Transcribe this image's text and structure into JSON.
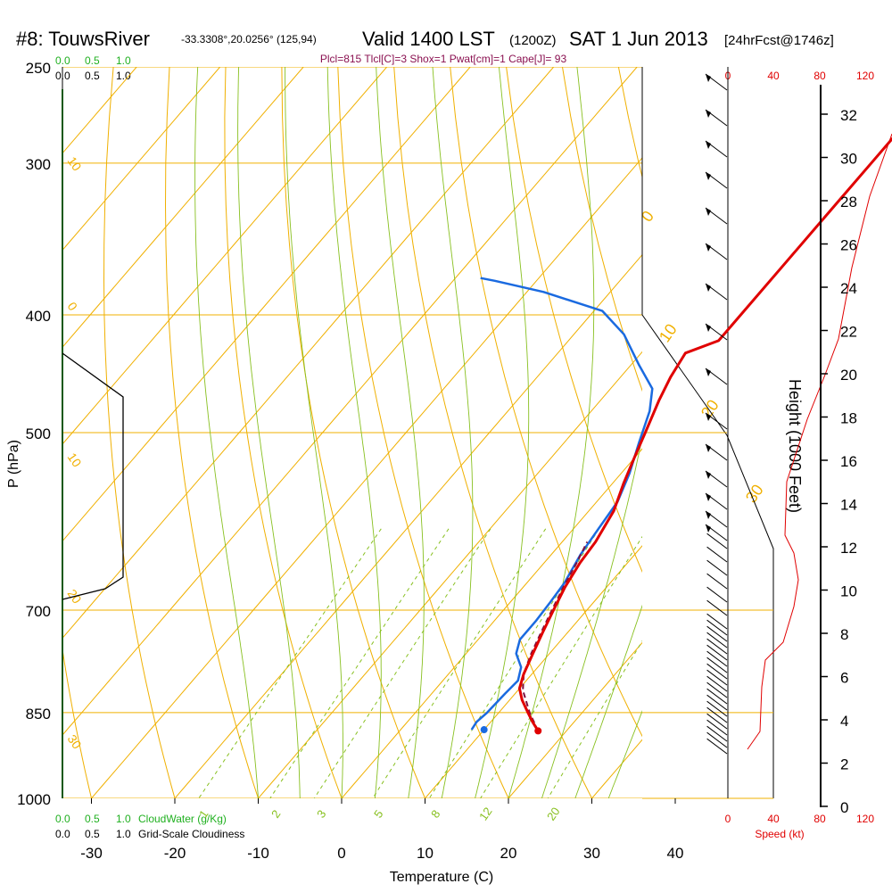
{
  "header": {
    "station": "#8: TouwsRiver",
    "coords": "-33.3308°,20.0256° (125,94)",
    "valid": "Valid 1400 LST",
    "zulu": "(1200Z)",
    "date": "SAT 1 Jun 2013",
    "forecast": "[24hrFcst@1746z]"
  },
  "indices": "Plcl=815 Tlcl[C]=3 Shox=1 Pwat[cm]=1 Cape[J]= 93",
  "colors": {
    "temperature": "#e00000",
    "dewpoint": "#1a6ae0",
    "parcel": "#7a1040",
    "isotherm_isobar": "#f0b000",
    "moist_adiabat": "#88c020",
    "mixing_ratio": "#88c020",
    "cloudwater": "#20b020",
    "speed": "#e00000"
  },
  "chart_data": {
    "type": "line",
    "xlabel": "Temperature (C)",
    "ylabel": "P (hPa)",
    "y2label": "Height (1000 Feet)",
    "xticks": [
      -30,
      -20,
      -10,
      0,
      10,
      20,
      30,
      40
    ],
    "pressure_ticks": [
      250,
      300,
      400,
      500,
      700,
      850,
      1000
    ],
    "height_ticks": [
      0,
      2,
      4,
      6,
      8,
      10,
      12,
      14,
      16,
      18,
      20,
      22,
      24,
      26,
      28,
      30,
      32
    ],
    "dry_adiabat_labels": [
      "30",
      "20",
      "10",
      "0",
      "-10",
      "-20",
      "-30"
    ],
    "isotherm_labels": [
      "0",
      "10",
      "20",
      "30"
    ],
    "mixing_ratio_labels": [
      "1",
      "2",
      "3",
      "5",
      "8",
      "12",
      "20"
    ],
    "cloud_scale_top_green": [
      "0.0",
      "0.5",
      "1.0"
    ],
    "cloud_scale_top_black": [
      "0.0",
      "0.5",
      "1.0"
    ],
    "cloud_scale_bottom_green": [
      "0.0",
      "0.5",
      "1.0"
    ],
    "cloud_scale_bottom_black": [
      "0.0",
      "0.5",
      "1.0"
    ],
    "cloudwater_label": "CloudWater (g/Kg)",
    "cloudiness_label": "Grid-Scale Cloudiness",
    "speed_ticks": [
      "0",
      "40",
      "80",
      "120"
    ],
    "speed_label": "Speed (kt)",
    "series": [
      {
        "name": "temperature",
        "points": [
          [
            16.6,
            880
          ],
          [
            15.0,
            865
          ],
          [
            13.5,
            850
          ],
          [
            11.5,
            830
          ],
          [
            10.0,
            812
          ],
          [
            9.0,
            790
          ],
          [
            8.0,
            760
          ],
          [
            7.0,
            730
          ],
          [
            6.0,
            700
          ],
          [
            5.0,
            670
          ],
          [
            4.3,
            640
          ],
          [
            4.0,
            615
          ],
          [
            3.0,
            580
          ],
          [
            1.3,
            550
          ],
          [
            0.0,
            525
          ],
          [
            -1.3,
            500
          ],
          [
            -3.0,
            470
          ],
          [
            -4.0,
            450
          ],
          [
            -4.7,
            430
          ],
          [
            -2.0,
            420
          ],
          [
            -2.0,
            400
          ],
          [
            -2.0,
            360
          ],
          [
            -2.0,
            320
          ],
          [
            -2.0,
            300
          ],
          [
            -2.0,
            285
          ],
          [
            -2.2,
            270
          ],
          [
            -2.5,
            262
          ]
        ]
      },
      {
        "name": "dewpoint",
        "points": [
          [
            8.5,
            878
          ],
          [
            8.3,
            865
          ],
          [
            8.6,
            850
          ],
          [
            8.8,
            820
          ],
          [
            9.0,
            800
          ],
          [
            8.0,
            780
          ],
          [
            6.0,
            760
          ],
          [
            5.0,
            740
          ],
          [
            5.0,
            715
          ],
          [
            4.8,
            690
          ],
          [
            4.5,
            665
          ],
          [
            3.5,
            630
          ],
          [
            3.0,
            600
          ],
          [
            2.5,
            570
          ],
          [
            1.0,
            540
          ],
          [
            -1.0,
            510
          ],
          [
            -3.0,
            480
          ],
          [
            -5.0,
            460
          ],
          [
            -9.0,
            440
          ],
          [
            -14.0,
            415
          ],
          [
            -19.0,
            397
          ],
          [
            -28.0,
            383
          ],
          [
            -35.0,
            375
          ],
          [
            -37.0,
            373
          ]
        ]
      },
      {
        "name": "surface-dewpoint-marker",
        "points": [
          [
            10.0,
            878
          ]
        ]
      }
    ],
    "winds_note": "wind barbs from 880 to 260 hPa"
  }
}
